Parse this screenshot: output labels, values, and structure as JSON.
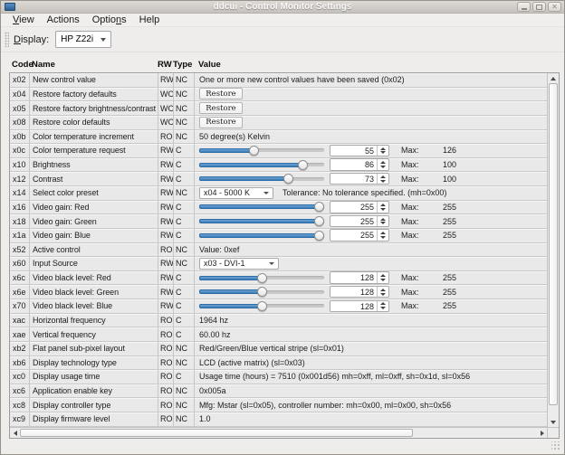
{
  "window": {
    "title": "ddcui - Control Monitor Settings"
  },
  "icons": {
    "minimize": "dash",
    "maximize": "square",
    "close": "✕",
    "combo_arrow": "▾",
    "spin_up": "▲",
    "spin_down": "▼"
  },
  "colors": {
    "slider_fill": "#3a7cb8",
    "slider_border": "#2e6da5",
    "row_bg": "#e9e9e9",
    "titlebar_text": "#fafaf9"
  },
  "menu": {
    "items": [
      {
        "pre": "",
        "mn": "V",
        "post": "iew"
      },
      {
        "pre": "Actions",
        "mn": "",
        "post": ""
      },
      {
        "pre": "Optio",
        "mn": "n",
        "post": "s"
      },
      {
        "pre": "Help",
        "mn": "",
        "post": ""
      }
    ]
  },
  "toolbar": {
    "display_label": {
      "pre": "",
      "mn": "D",
      "post": "isplay:"
    },
    "display_value": "HP Z22i"
  },
  "labels": {
    "max": "Max:"
  },
  "table": {
    "headers": [
      "Code",
      "Name",
      "RW",
      "Type",
      "Value"
    ],
    "rows": [
      {
        "code": "x02",
        "name": "New control value",
        "rw": "RW",
        "type": "NC",
        "kind": "text",
        "value": "One or more new control values have been saved (0x02)"
      },
      {
        "code": "x04",
        "name": "Restore factory defaults",
        "rw": "WO",
        "type": "NC",
        "kind": "button",
        "value": "Restore"
      },
      {
        "code": "x05",
        "name": "Restore factory brightness/contrast",
        "rw": "WO",
        "type": "NC",
        "kind": "button",
        "value": "Restore"
      },
      {
        "code": "x08",
        "name": "Restore color defaults",
        "rw": "WO",
        "type": "NC",
        "kind": "button",
        "value": "Restore"
      },
      {
        "code": "x0b",
        "name": "Color temperature increment",
        "rw": "RO",
        "type": "NC",
        "kind": "text",
        "value": "50 degree(s) Kelvin"
      },
      {
        "code": "x0c",
        "name": "Color temperature request",
        "rw": "RW",
        "type": "C",
        "kind": "slider",
        "value": 55,
        "max": 126
      },
      {
        "code": "x10",
        "name": "Brightness",
        "rw": "RW",
        "type": "C",
        "kind": "slider",
        "value": 86,
        "max": 100
      },
      {
        "code": "x12",
        "name": "Contrast",
        "rw": "RW",
        "type": "C",
        "kind": "slider",
        "value": 73,
        "max": 100
      },
      {
        "code": "x14",
        "name": "Select color preset",
        "rw": "RW",
        "type": "NC",
        "kind": "combo",
        "combo": "x04 - 5000 K",
        "suffix": "Tolerance: No tolerance specified. (mh=0x00)"
      },
      {
        "code": "x16",
        "name": "Video gain: Red",
        "rw": "RW",
        "type": "C",
        "kind": "slider",
        "value": 255,
        "max": 255
      },
      {
        "code": "x18",
        "name": "Video gain: Green",
        "rw": "RW",
        "type": "C",
        "kind": "slider",
        "value": 255,
        "max": 255
      },
      {
        "code": "x1a",
        "name": "Video gain: Blue",
        "rw": "RW",
        "type": "C",
        "kind": "slider",
        "value": 255,
        "max": 255
      },
      {
        "code": "x52",
        "name": "Active control",
        "rw": "RO",
        "type": "NC",
        "kind": "text",
        "value": "Value: 0xef"
      },
      {
        "code": "x60",
        "name": "Input Source",
        "rw": "RW",
        "type": "NC",
        "kind": "combo",
        "combo": "x03 - DVI-1",
        "suffix": ""
      },
      {
        "code": "x6c",
        "name": "Video black level: Red",
        "rw": "RW",
        "type": "C",
        "kind": "slider",
        "value": 128,
        "max": 255
      },
      {
        "code": "x6e",
        "name": "Video black level: Green",
        "rw": "RW",
        "type": "C",
        "kind": "slider",
        "value": 128,
        "max": 255
      },
      {
        "code": "x70",
        "name": "Video black level: Blue",
        "rw": "RW",
        "type": "C",
        "kind": "slider",
        "value": 128,
        "max": 255
      },
      {
        "code": "xac",
        "name": "Horizontal frequency",
        "rw": "RO",
        "type": "C",
        "kind": "text",
        "value": "1964 hz"
      },
      {
        "code": "xae",
        "name": "Vertical frequency",
        "rw": "RO",
        "type": "C",
        "kind": "text",
        "value": "60.00 hz"
      },
      {
        "code": "xb2",
        "name": "Flat panel sub-pixel layout",
        "rw": "RO",
        "type": "NC",
        "kind": "text",
        "value": "Red/Green/Blue vertical stripe (sl=0x01)"
      },
      {
        "code": "xb6",
        "name": "Display technology type",
        "rw": "RO",
        "type": "NC",
        "kind": "text",
        "value": "LCD (active matrix) (sl=0x03)"
      },
      {
        "code": "xc0",
        "name": "Display usage time",
        "rw": "RO",
        "type": "C",
        "kind": "text",
        "value": "Usage time (hours) = 7510 (0x001d56) mh=0xff, ml=0xff, sh=0x1d, sl=0x56"
      },
      {
        "code": "xc6",
        "name": "Application enable key",
        "rw": "RO",
        "type": "NC",
        "kind": "text",
        "value": "0x005a"
      },
      {
        "code": "xc8",
        "name": "Display controller type",
        "rw": "RO",
        "type": "NC",
        "kind": "text",
        "value": "Mfg: Mstar (sl=0x05), controller number: mh=0x00, ml=0x00, sh=0x56"
      },
      {
        "code": "xc9",
        "name": "Display firmware level",
        "rw": "RO",
        "type": "NC",
        "kind": "text",
        "value": "1.0"
      }
    ]
  }
}
